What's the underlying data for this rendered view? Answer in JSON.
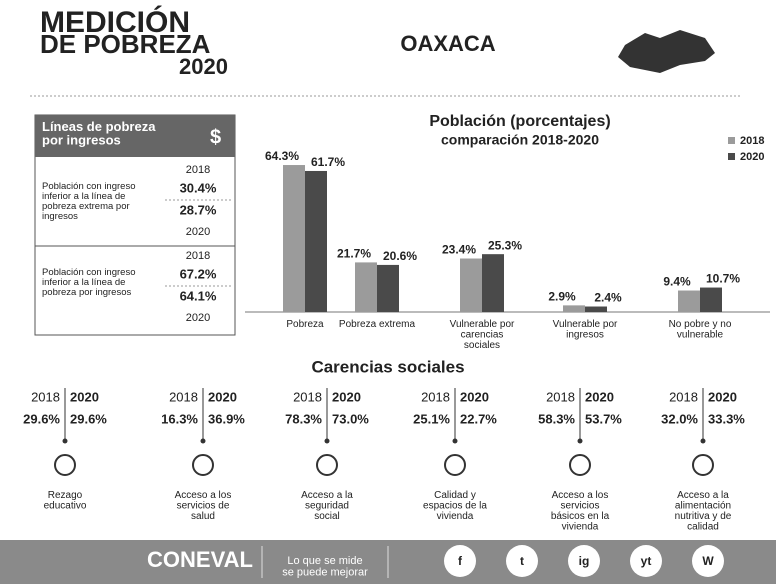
{
  "header": {
    "title": [
      "MEDICIÓN",
      "DE POBREZA",
      "2020"
    ],
    "state": "OAXACA"
  },
  "lineas": {
    "title": "Líneas de pobreza por ingresos",
    "icon": "$",
    "rows": [
      {
        "label": "Población con ingreso inferior a la línea de pobreza extrema por ingresos",
        "years": [
          "2018",
          "2020"
        ],
        "values": [
          "30.4%",
          "28.7%"
        ]
      },
      {
        "label": "Población con ingreso inferior a la línea de pobreza por ingresos",
        "years": [
          "2018",
          "2020"
        ],
        "values": [
          "67.2%",
          "64.1%"
        ]
      }
    ]
  },
  "chart_data": {
    "type": "bar",
    "title": "Población (porcentajes)",
    "subtitle": "comparación 2018-2020",
    "categories": [
      "Pobreza",
      "Pobreza extrema",
      "Vulnerable por carencias sociales",
      "Vulnerable por ingresos",
      "No pobre y no vulnerable"
    ],
    "series": [
      {
        "name": "2018",
        "color": "#9b9b9b",
        "values": [
          64.3,
          21.7,
          23.4,
          2.9,
          9.4
        ],
        "value_labels": [
          "64.3%",
          "21.7%",
          "23.4%",
          "2.9%",
          "9.4%"
        ]
      },
      {
        "name": "2020",
        "color": "#4a4a4a",
        "values": [
          61.7,
          20.6,
          25.3,
          2.4,
          10.7
        ],
        "value_labels": [
          "61.7%",
          "20.6%",
          "25.3%",
          "2.4%",
          "10.7%"
        ]
      }
    ],
    "ylim": [
      0,
      70
    ],
    "legend": "top-right"
  },
  "carencias": {
    "title": "Carencias sociales",
    "years": [
      "2018",
      "2020"
    ],
    "items": [
      {
        "label": "Rezago educativo",
        "values": [
          "29.6%",
          "29.6%"
        ]
      },
      {
        "label": "Acceso a los servicios de salud",
        "values": [
          "16.3%",
          "36.9%"
        ]
      },
      {
        "label": "Acceso a la seguridad social",
        "values": [
          "78.3%",
          "73.0%"
        ]
      },
      {
        "label": "Calidad y espacios de la vivienda",
        "values": [
          "25.1%",
          "22.7%"
        ]
      },
      {
        "label": "Acceso a los servicios básicos en la vivienda",
        "values": [
          "58.3%",
          "53.7%"
        ]
      },
      {
        "label": "Acceso a la alimentación nutritiva y de calidad",
        "values": [
          "32.0%",
          "33.3%"
        ]
      }
    ]
  },
  "footer": {
    "brand": "CONEVAL",
    "slogan": "Lo que se mide se puede mejorar",
    "social": [
      "f",
      "t",
      "ig",
      "yt",
      "W"
    ]
  }
}
